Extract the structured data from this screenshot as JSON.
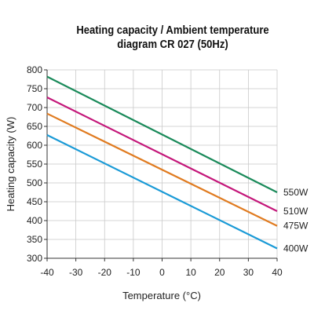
{
  "chart_data": {
    "type": "line",
    "title": "Heating capacity / Ambient temperature",
    "subtitle": "diagram CR 027 (50Hz)",
    "xlabel": "Temperature (°C)",
    "ylabel": "Heating capacity (W)",
    "xlim": [
      -40,
      40
    ],
    "ylim": [
      300,
      800
    ],
    "x_ticks": [
      -40,
      -30,
      -20,
      -10,
      0,
      10,
      20,
      30,
      40
    ],
    "y_ticks": [
      300,
      350,
      400,
      450,
      500,
      550,
      600,
      650,
      700,
      750,
      800
    ],
    "grid": true,
    "legend": "labels at right end of lines",
    "series": [
      {
        "name": "550W",
        "color": "#1a8a5a",
        "x": [
          -40,
          40
        ],
        "y": [
          782,
          475
        ]
      },
      {
        "name": "510W",
        "color": "#c4177a",
        "x": [
          -40,
          40
        ],
        "y": [
          727,
          425
        ]
      },
      {
        "name": "475W",
        "color": "#e07b20",
        "x": [
          -40,
          40
        ],
        "y": [
          684,
          386
        ]
      },
      {
        "name": "400W",
        "color": "#1a9ad6",
        "x": [
          -40,
          40
        ],
        "y": [
          627,
          326
        ]
      }
    ]
  }
}
